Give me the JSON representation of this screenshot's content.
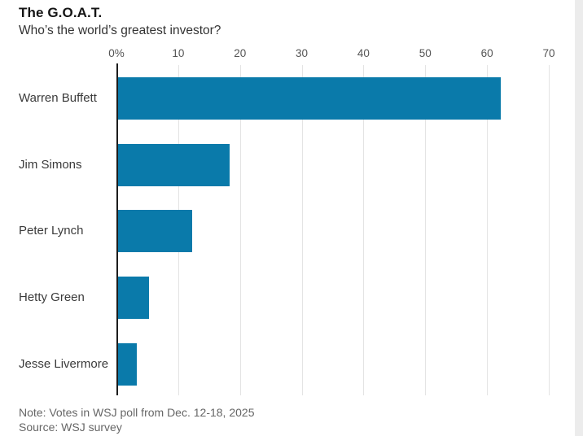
{
  "header": {
    "title": "The G.O.A.T.",
    "subtitle": "Who’s the world’s greatest investor?"
  },
  "footer": {
    "note": "Note: Votes in WSJ poll from Dec. 12-18, 2025",
    "source": "Source: WSJ survey"
  },
  "chart_data": {
    "type": "bar",
    "orientation": "horizontal",
    "title": "The G.O.A.T.",
    "subtitle": "Who’s the world’s greatest investor?",
    "categories": [
      "Warren Buffett",
      "Jim Simons",
      "Peter Lynch",
      "Hetty Green",
      "Jesse Livermore"
    ],
    "values": [
      62,
      18,
      12,
      5,
      3
    ],
    "unit": "%",
    "xlim": [
      0,
      70
    ],
    "x_tick_labels": [
      "0%",
      "10",
      "20",
      "30",
      "40",
      "50",
      "60",
      "70"
    ],
    "x_tick_values": [
      0,
      10,
      20,
      30,
      40,
      50,
      60,
      70
    ],
    "grid": true,
    "legend": "none",
    "axis_position": "top",
    "bar_color": "#0a7aaa"
  },
  "colors": {
    "bar": "#0a7aaa",
    "gridline": "#e4e4e4",
    "zero_axis": "#1c1c1c",
    "tick_label": "#555555",
    "category_label": "#3a3a3a",
    "footer_text": "#666666",
    "edge_strip": "#ececec"
  }
}
